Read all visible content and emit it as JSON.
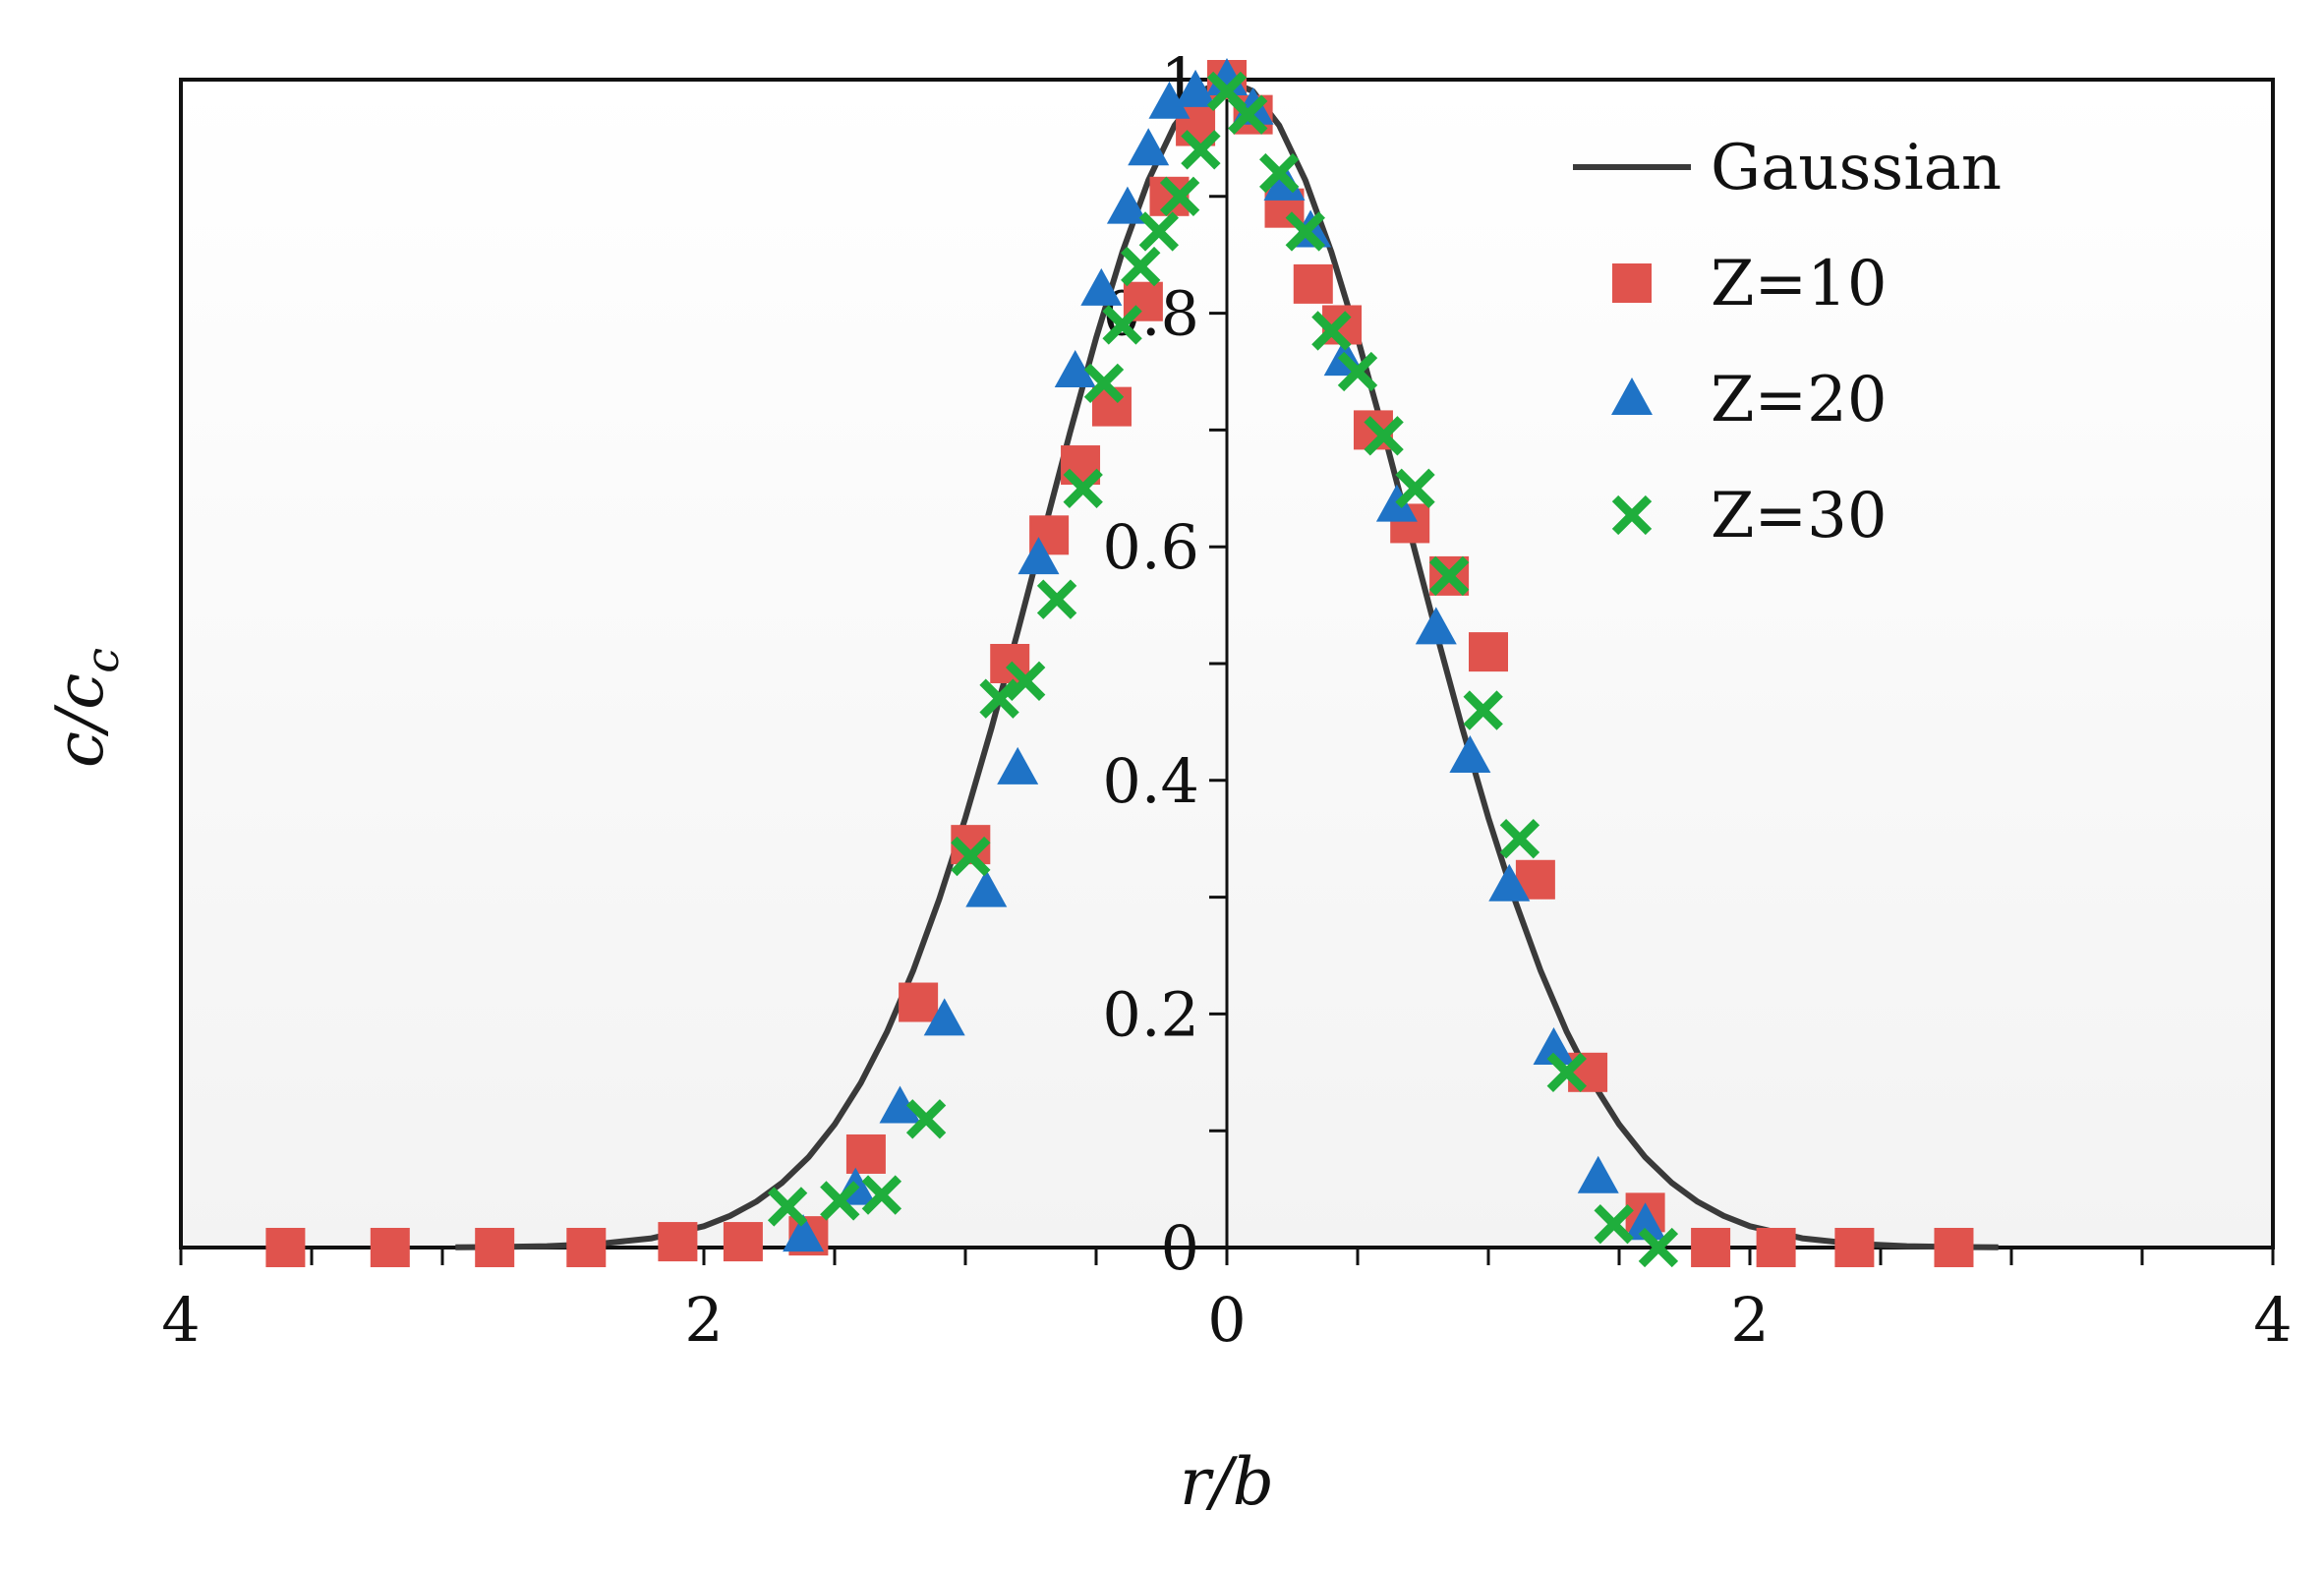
{
  "chart_data": {
    "type": "scatter",
    "xlabel": "r/b",
    "ylabel": "c/c",
    "ylabel_sub": "c",
    "xlim": [
      -4,
      4
    ],
    "ylim": [
      0,
      1
    ],
    "x_tick_values": [
      -4,
      -2,
      0,
      2,
      4
    ],
    "x_tick_labels": [
      "4",
      "2",
      "0",
      "2",
      "4"
    ],
    "y_tick_values": [
      0,
      0.2,
      0.4,
      0.6,
      0.8,
      1
    ],
    "y_tick_labels": [
      "0",
      "0.2",
      "0.4",
      "0.6",
      "0.8",
      "1"
    ],
    "grid": false,
    "legend_position": "top-right",
    "series": [
      {
        "name": "Gaussian",
        "kind": "line",
        "color": "#3a3a3a",
        "x": [
          -2.95,
          -2.8,
          -2.6,
          -2.4,
          -2.2,
          -2.0,
          -1.9,
          -1.8,
          -1.7,
          -1.6,
          -1.5,
          -1.4,
          -1.3,
          -1.2,
          -1.1,
          -1.0,
          -0.9,
          -0.8,
          -0.7,
          -0.6,
          -0.5,
          -0.4,
          -0.3,
          -0.2,
          -0.1,
          0.0,
          0.1,
          0.2,
          0.3,
          0.4,
          0.5,
          0.6,
          0.7,
          0.8,
          0.9,
          1.0,
          1.1,
          1.2,
          1.3,
          1.4,
          1.5,
          1.6,
          1.7,
          1.8,
          1.9,
          2.0,
          2.2,
          2.4,
          2.6,
          2.8,
          2.95
        ],
        "y": [
          0.0002,
          0.0004,
          0.0012,
          0.0032,
          0.0079,
          0.0183,
          0.0271,
          0.0392,
          0.0556,
          0.0773,
          0.1054,
          0.1409,
          0.1845,
          0.2369,
          0.2982,
          0.3679,
          0.4449,
          0.5273,
          0.6126,
          0.6977,
          0.7788,
          0.8521,
          0.9139,
          0.9608,
          0.99,
          1.0,
          0.99,
          0.9608,
          0.9139,
          0.8521,
          0.7788,
          0.6977,
          0.6126,
          0.5273,
          0.4449,
          0.3679,
          0.2982,
          0.2369,
          0.1845,
          0.1409,
          0.1054,
          0.0773,
          0.0556,
          0.0392,
          0.0271,
          0.0183,
          0.0079,
          0.0032,
          0.0012,
          0.0004,
          0.0002
        ]
      },
      {
        "name": "Z=10",
        "kind": "marker",
        "marker": "square",
        "color": "#e0534d",
        "x": [
          -3.6,
          -3.2,
          -2.8,
          -2.45,
          -2.1,
          -1.85,
          -1.6,
          -1.38,
          -1.18,
          -0.98,
          -0.83,
          -0.68,
          -0.56,
          -0.44,
          -0.32,
          -0.22,
          -0.12,
          0.0,
          0.1,
          0.22,
          0.33,
          0.44,
          0.56,
          0.7,
          0.85,
          1.0,
          1.18,
          1.38,
          1.6,
          1.85,
          2.1,
          2.4,
          2.78
        ],
        "y": [
          0.0,
          0.0,
          0.0,
          0.0,
          0.005,
          0.005,
          0.01,
          0.08,
          0.21,
          0.345,
          0.5,
          0.61,
          0.67,
          0.72,
          0.81,
          0.9,
          0.96,
          1.0,
          0.97,
          0.89,
          0.825,
          0.79,
          0.7,
          0.62,
          0.575,
          0.51,
          0.315,
          0.15,
          0.03,
          0.0,
          0.0,
          0.0,
          0.0
        ]
      },
      {
        "name": "Z=20",
        "kind": "marker",
        "marker": "triangle",
        "color": "#1f73c6",
        "x": [
          -1.62,
          -1.42,
          -1.25,
          -1.08,
          -0.92,
          -0.8,
          -0.72,
          -0.58,
          -0.48,
          -0.38,
          -0.3,
          -0.22,
          -0.12,
          0.0,
          0.1,
          0.22,
          0.32,
          0.45,
          0.65,
          0.8,
          0.93,
          1.08,
          1.25,
          1.42,
          1.6
        ],
        "y": [
          0.01,
          0.05,
          0.12,
          0.195,
          0.305,
          0.41,
          0.59,
          0.75,
          0.82,
          0.89,
          0.94,
          0.98,
          0.99,
          1.0,
          0.975,
          0.91,
          0.87,
          0.76,
          0.635,
          0.53,
          0.42,
          0.31,
          0.17,
          0.06,
          0.02
        ]
      },
      {
        "name": "Z=30",
        "kind": "marker",
        "marker": "x",
        "color": "#1fae3c",
        "x": [
          -1.68,
          -1.48,
          -1.32,
          -1.15,
          -0.98,
          -0.87,
          -0.77,
          -0.65,
          -0.55,
          -0.47,
          -0.4,
          -0.33,
          -0.26,
          -0.18,
          -0.1,
          0.0,
          0.08,
          0.2,
          0.3,
          0.4,
          0.5,
          0.6,
          0.72,
          0.85,
          0.98,
          1.12,
          1.3,
          1.48,
          1.65
        ],
        "y": [
          0.035,
          0.04,
          0.045,
          0.11,
          0.335,
          0.47,
          0.485,
          0.555,
          0.65,
          0.74,
          0.79,
          0.84,
          0.87,
          0.9,
          0.94,
          0.99,
          0.97,
          0.92,
          0.87,
          0.785,
          0.75,
          0.695,
          0.65,
          0.575,
          0.46,
          0.35,
          0.15,
          0.02,
          0.0
        ]
      }
    ]
  }
}
